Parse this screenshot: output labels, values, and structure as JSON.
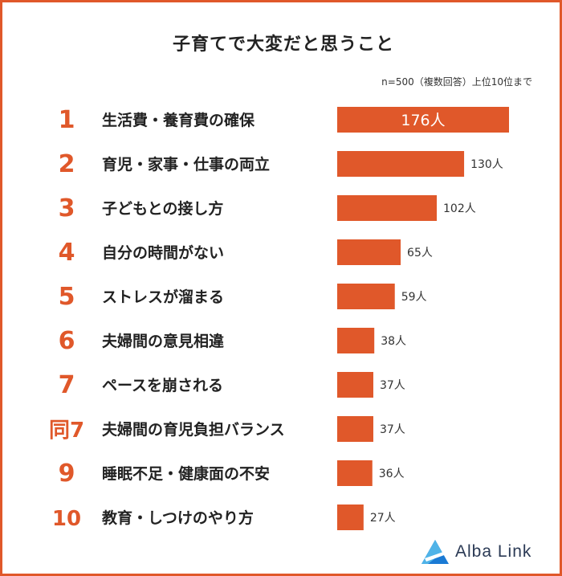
{
  "title": "子育てで大変だと思うこと",
  "note": "n=500（複数回答）上位10位まで",
  "logo_text": "Alba Link",
  "colors": {
    "accent": "#e0582a",
    "text": "#222222",
    "logo_text": "#2b3a55",
    "logo_blue": "#1a7ad4",
    "logo_light": "#4fb3e8"
  },
  "chart_data": {
    "type": "bar",
    "orientation": "horizontal",
    "xlim": [
      0,
      176
    ],
    "categories": [
      "生活費・養育費の確保",
      "育児・家事・仕事の両立",
      "子どもとの接し方",
      "自分の時間がない",
      "ストレスが溜まる",
      "夫婦間の意見相違",
      "ペースを崩される",
      "夫婦間の育児負担バランス",
      "睡眠不足・健康面の不安",
      "教育・しつけのやり方"
    ],
    "ranks": [
      "1",
      "2",
      "3",
      "4",
      "5",
      "6",
      "7",
      "同7",
      "9",
      "10"
    ],
    "values": [
      176,
      130,
      102,
      65,
      59,
      38,
      37,
      37,
      36,
      27
    ],
    "value_labels": [
      "176人",
      "130人",
      "102人",
      "65人",
      "59人",
      "38人",
      "37人",
      "37人",
      "36人",
      "27人"
    ]
  }
}
